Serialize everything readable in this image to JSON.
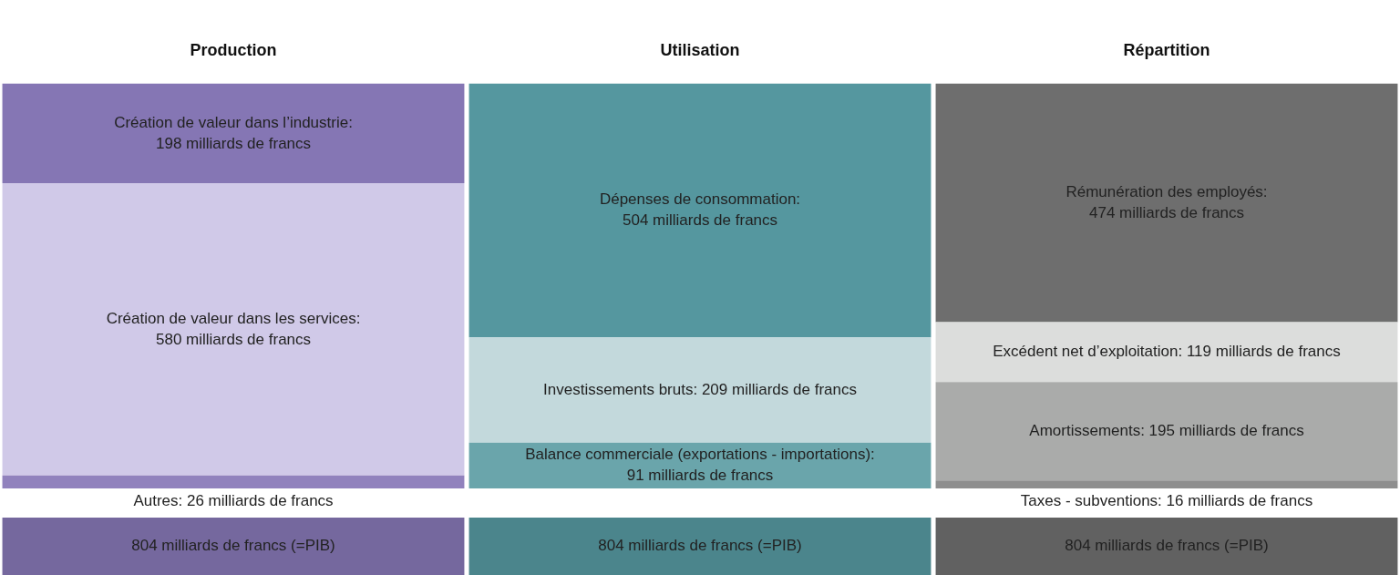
{
  "chart_data": {
    "type": "bar",
    "stacked": true,
    "categories": [
      "Production",
      "Utilisation",
      "Répartition"
    ],
    "series": [
      {
        "name": "Autres:",
        "color": "#9182bd",
        "values": [
          26,
          null,
          null
        ],
        "value_labels": [
          "26 milliards de francs",
          null,
          null
        ]
      },
      {
        "name": "Création de valeur dans les services:",
        "color": "#d0c9e8",
        "values": [
          580,
          null,
          null
        ],
        "value_labels": [
          "580 milliards de francs",
          null,
          null
        ]
      },
      {
        "name": "Création de valeur dans l’industrie:",
        "color": "#8576b4",
        "values": [
          198,
          null,
          null
        ],
        "value_labels": [
          "198 milliards de francs",
          null,
          null
        ]
      },
      {
        "name": "Balance commerciale (exportations - importations):",
        "color": "#6aa5ab",
        "values": [
          null,
          91,
          null
        ],
        "value_labels": [
          null,
          "91 milliards de francs",
          null
        ]
      },
      {
        "name": "Investissements bruts:",
        "color": "#c3d9dc",
        "values": [
          null,
          209,
          null
        ],
        "value_labels": [
          null,
          "209 milliards de francs",
          null
        ]
      },
      {
        "name": "Dépenses de consommation:",
        "color": "#55979f",
        "values": [
          null,
          504,
          null
        ],
        "value_labels": [
          null,
          "504 milliards de francs",
          null
        ]
      },
      {
        "name": "Taxes - subventions:",
        "color": "#8e8e8e",
        "values": [
          null,
          null,
          16
        ],
        "value_labels": [
          null,
          null,
          "16 milliards de francs"
        ]
      },
      {
        "name": "Amortissements:",
        "color": "#aaabaa",
        "values": [
          null,
          null,
          195
        ],
        "value_labels": [
          null,
          null,
          "195 milliards de francs"
        ]
      },
      {
        "name": "Excédent net d’exploitation:",
        "color": "#dcdddc",
        "values": [
          null,
          null,
          119
        ],
        "value_labels": [
          null,
          null,
          "119 milliards de francs"
        ]
      },
      {
        "name": "Rémunération des employés:",
        "color": "#6e6e6e",
        "values": [
          null,
          null,
          474
        ],
        "value_labels": [
          null,
          null,
          "474 milliards de francs"
        ]
      }
    ],
    "totals": [
      "804 milliards de francs (=PIB)",
      "804 milliards de francs (=PIB)",
      "804 milliards de francs (=PIB)"
    ]
  }
}
